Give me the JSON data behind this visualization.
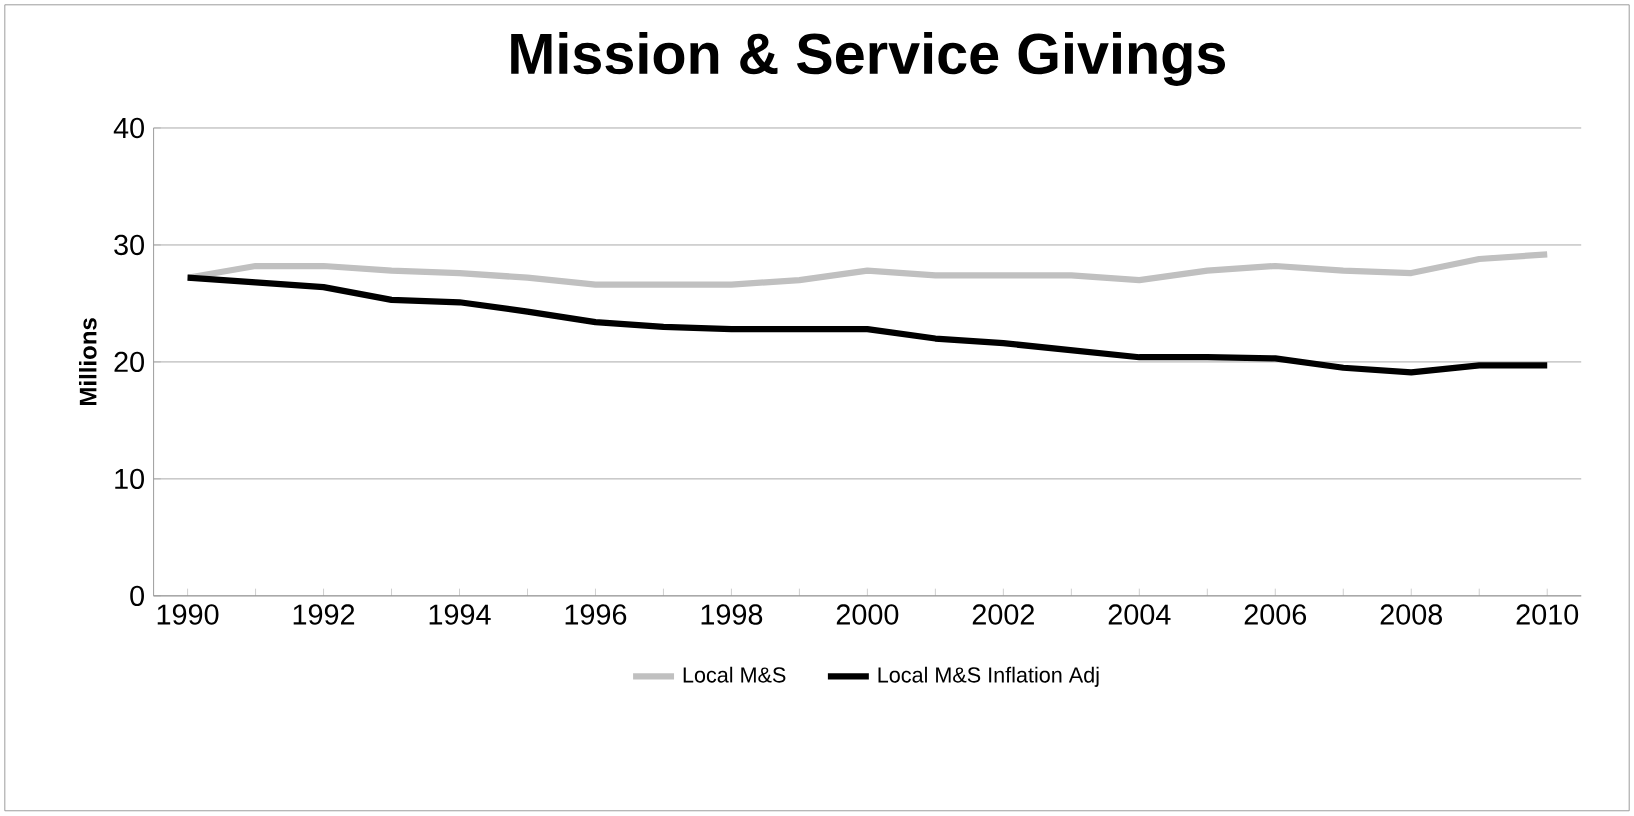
{
  "chart_data": {
    "type": "line",
    "title": "Mission & Service Givings",
    "ylabel": "Millions",
    "categories": [
      "1990",
      null,
      "1992",
      null,
      "1994",
      null,
      "1996",
      null,
      "1998",
      null,
      "2000",
      null,
      "2002",
      null,
      "2004",
      null,
      "2006",
      null,
      "2008",
      null,
      "2010"
    ],
    "series": [
      {
        "name": "Local M&S",
        "color": "#c0c0c0",
        "values": [
          27.2,
          28.2,
          28.2,
          27.8,
          27.6,
          27.2,
          26.6,
          26.6,
          26.6,
          27.0,
          27.8,
          27.4,
          27.4,
          27.4,
          27.0,
          27.8,
          28.2,
          27.8,
          27.6,
          28.8,
          29.2
        ]
      },
      {
        "name": "Local M&S Inflation Adj",
        "color": "#000000",
        "values": [
          27.2,
          26.8,
          26.4,
          25.3,
          25.1,
          24.3,
          23.4,
          23.0,
          22.8,
          22.8,
          22.8,
          22.0,
          21.6,
          21.0,
          20.4,
          20.4,
          20.3,
          19.5,
          19.1,
          19.7,
          19.7
        ]
      }
    ],
    "ylim": [
      0,
      40
    ],
    "yticks": [
      0,
      10,
      20,
      30,
      40
    ],
    "grid": "y",
    "legend": "bottom",
    "marker": "none",
    "line_style": "solid"
  }
}
